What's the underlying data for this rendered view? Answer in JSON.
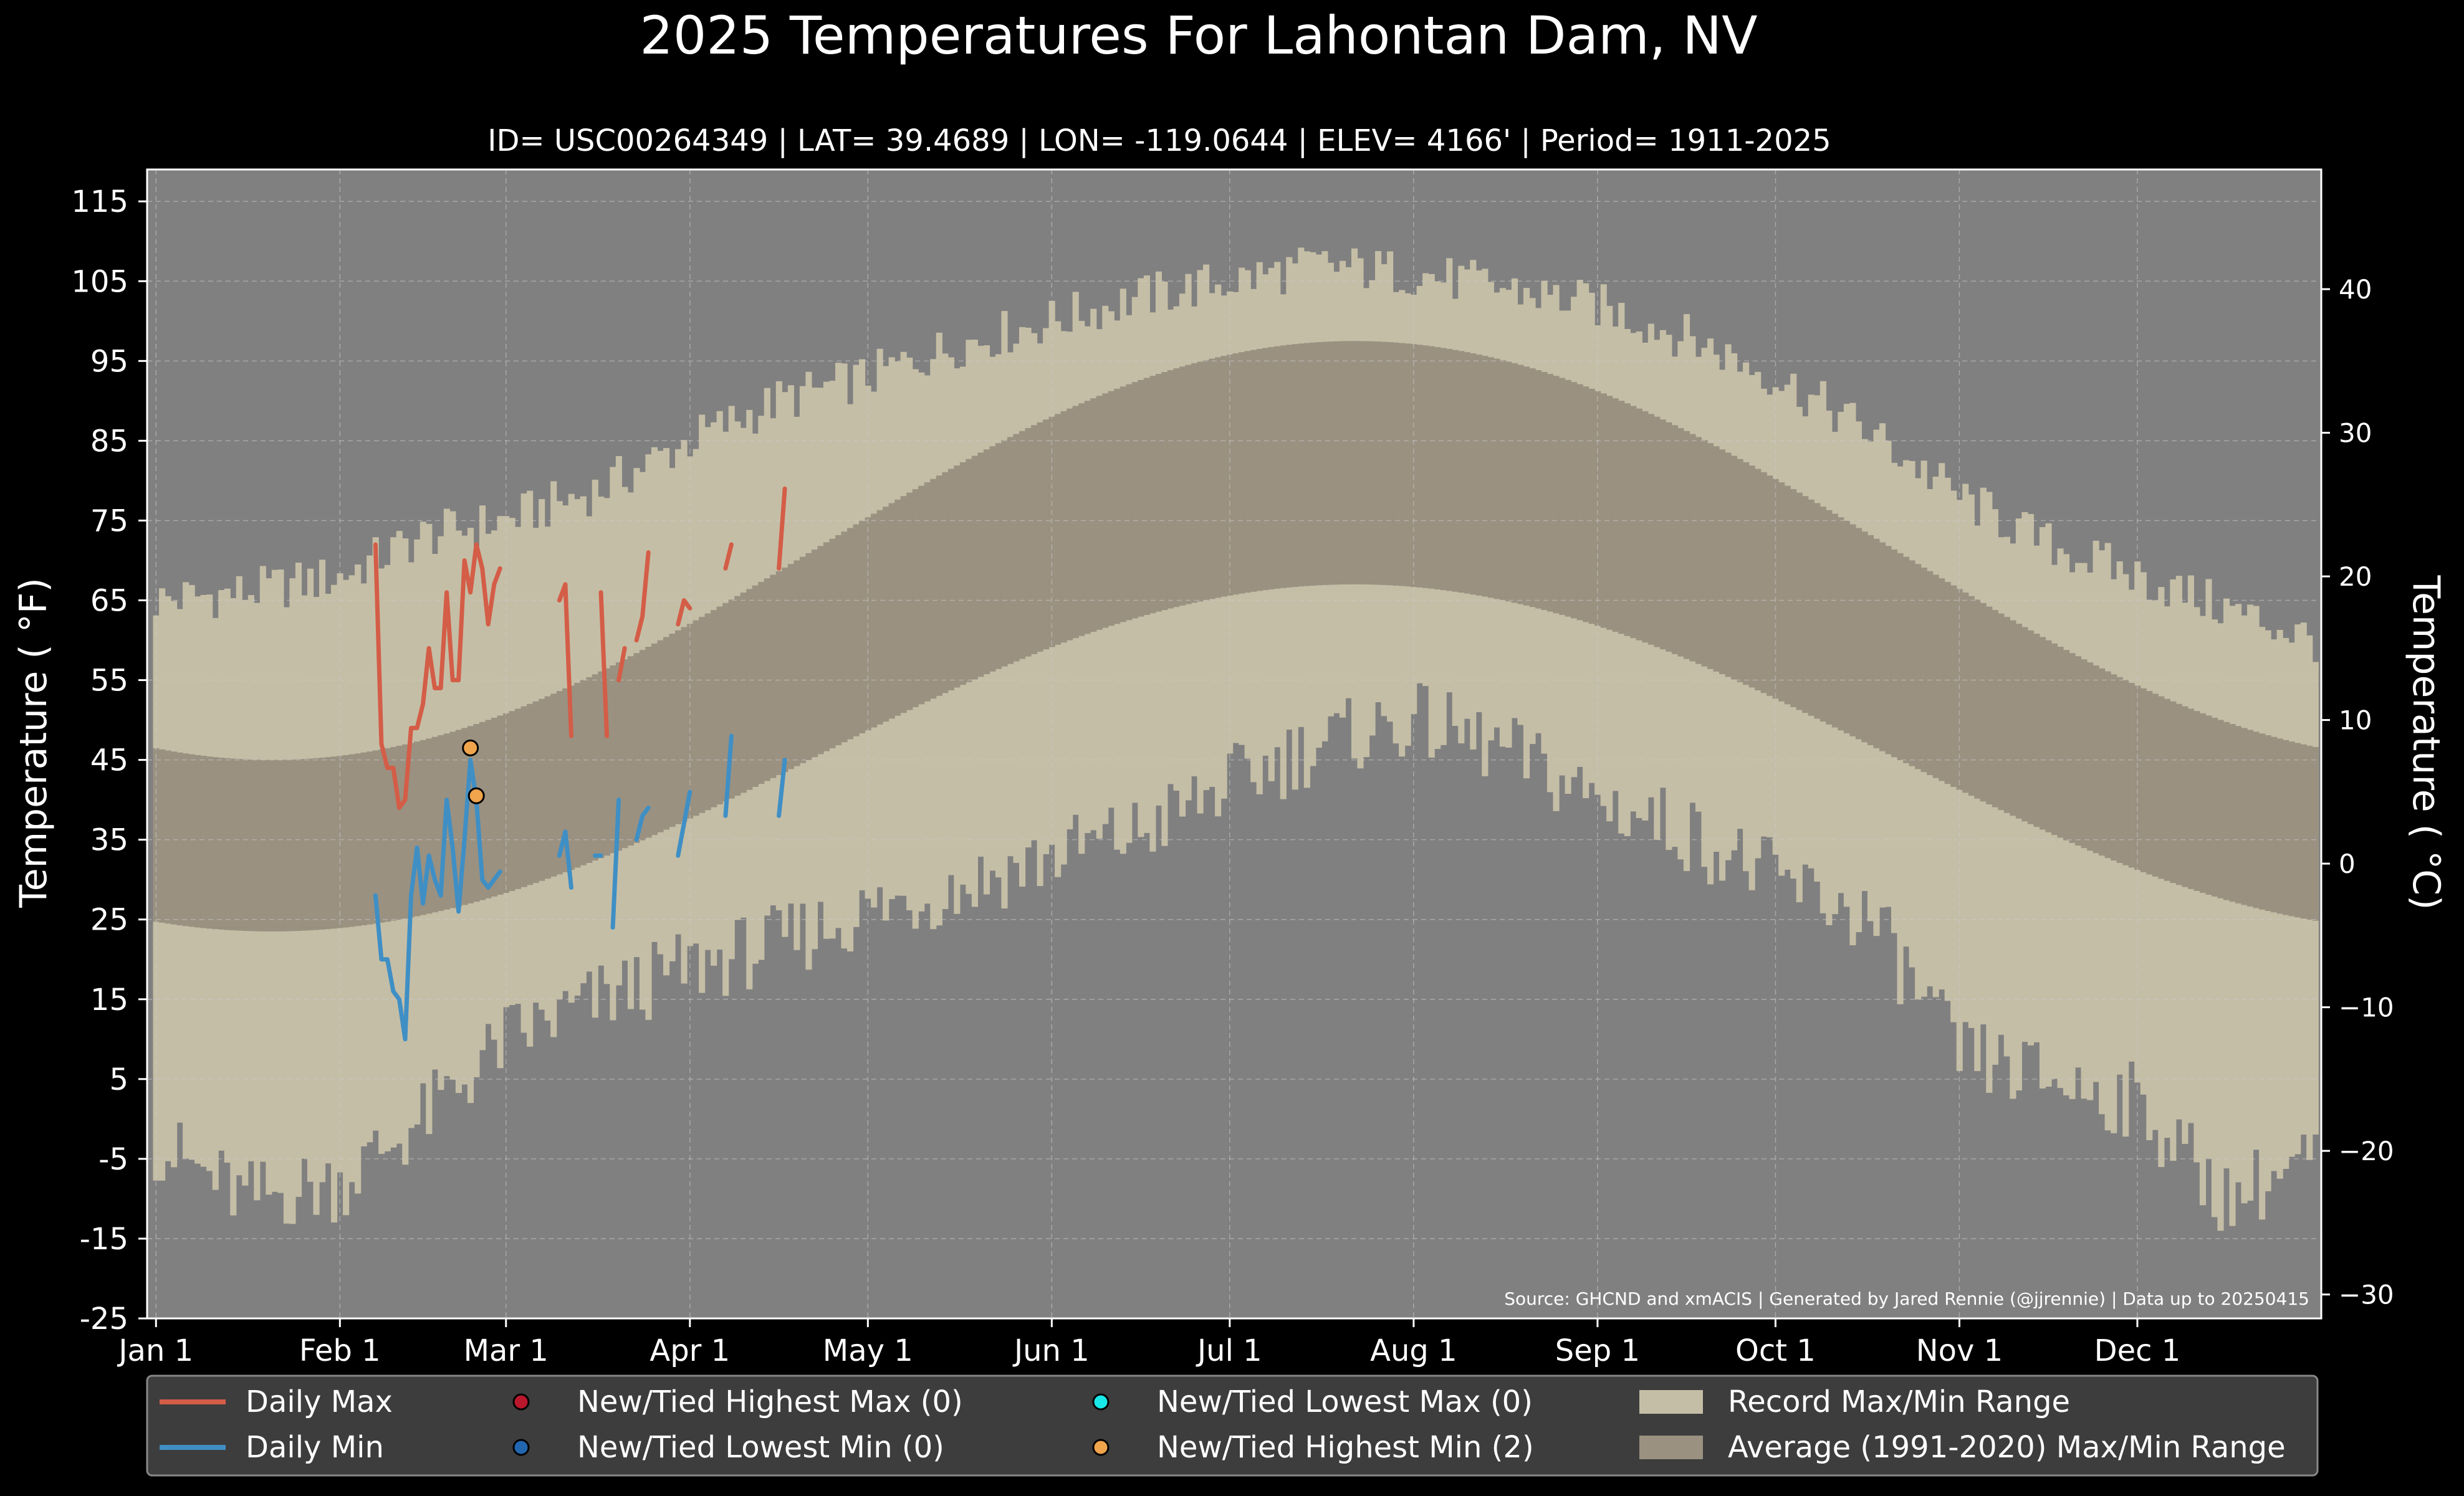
{
  "chart_data": {
    "type": "area",
    "title": "2025 Temperatures For Lahontan Dam, NV",
    "subtitle": "ID= USC00264349 | LAT= 39.4689 | LON= -119.0644 | ELEV= 4166' | Period= 1911-2025",
    "ylabel": "Temperature ( °F)",
    "ylabel_right": "Temperature ( °C)",
    "source": "Source: GHCND and xmACIS | Generated by Jared Rennie (@jjrennie) | Data up to 20250415",
    "ylim": [
      -25,
      119
    ],
    "xlim_day": [
      -1.5,
      365
    ],
    "y_ticks": [
      -25,
      -15,
      -5,
      5,
      15,
      25,
      35,
      45,
      55,
      65,
      75,
      85,
      95,
      105,
      115
    ],
    "y_ticks_right": [
      -30,
      -20,
      -10,
      0,
      10,
      20,
      30,
      40
    ],
    "x_ticks": [
      {
        "label": "Jan 1",
        "day": 0
      },
      {
        "label": "Feb 1",
        "day": 31
      },
      {
        "label": "Mar 1",
        "day": 59
      },
      {
        "label": "Apr 1",
        "day": 90
      },
      {
        "label": "May 1",
        "day": 120
      },
      {
        "label": "Jun 1",
        "day": 151
      },
      {
        "label": "Jul 1",
        "day": 181
      },
      {
        "label": "Aug 1",
        "day": 212
      },
      {
        "label": "Sep 1",
        "day": 243
      },
      {
        "label": "Oct 1",
        "day": 273
      },
      {
        "label": "Nov 1",
        "day": 304
      },
      {
        "label": "Dec 1",
        "day": 334
      }
    ],
    "grid": true,
    "legend_position": "bottom",
    "colors": {
      "plot_bg": "#808080",
      "record_range": "#c5bea6",
      "normal_range": "#9a9181",
      "daily_max": "#d45d47",
      "daily_min": "#3f8fc5",
      "new_highest_max": "#b8172c",
      "new_lowest_min": "#2266b0",
      "new_lowest_max": "#19e8e8",
      "new_highest_min": "#f0a44c",
      "legend_bg": "#3d3d3d"
    },
    "normal_range": {
      "max_low_point": {
        "day": 0,
        "value": 45
      },
      "max_peak": {
        "day": 202,
        "value": 97.5
      },
      "max_year_end": {
        "day": 364,
        "value": 45
      },
      "min_low_point": {
        "day": 0,
        "value": 23.5
      },
      "min_peak": {
        "day": 202,
        "value": 67
      },
      "min_year_end": {
        "day": 364,
        "value": 23.5
      }
    },
    "record_max_anchors": [
      {
        "day": 0,
        "value": 65
      },
      {
        "day": 15,
        "value": 66
      },
      {
        "day": 31,
        "value": 68
      },
      {
        "day": 45,
        "value": 73
      },
      {
        "day": 59,
        "value": 75
      },
      {
        "day": 75,
        "value": 79
      },
      {
        "day": 90,
        "value": 85
      },
      {
        "day": 105,
        "value": 90
      },
      {
        "day": 120,
        "value": 93
      },
      {
        "day": 135,
        "value": 97
      },
      {
        "day": 151,
        "value": 100
      },
      {
        "day": 166,
        "value": 103
      },
      {
        "day": 181,
        "value": 105
      },
      {
        "day": 196,
        "value": 107
      },
      {
        "day": 212,
        "value": 106
      },
      {
        "day": 228,
        "value": 104
      },
      {
        "day": 243,
        "value": 102
      },
      {
        "day": 258,
        "value": 98
      },
      {
        "day": 273,
        "value": 93
      },
      {
        "day": 289,
        "value": 86
      },
      {
        "day": 304,
        "value": 78
      },
      {
        "day": 319,
        "value": 72
      },
      {
        "day": 334,
        "value": 68
      },
      {
        "day": 349,
        "value": 64
      },
      {
        "day": 364,
        "value": 60
      }
    ],
    "record_min_anchors": [
      {
        "day": 0,
        "value": -3
      },
      {
        "day": 15,
        "value": -10
      },
      {
        "day": 31,
        "value": -8
      },
      {
        "day": 45,
        "value": 0
      },
      {
        "day": 59,
        "value": 10
      },
      {
        "day": 75,
        "value": 15
      },
      {
        "day": 90,
        "value": 19
      },
      {
        "day": 105,
        "value": 22
      },
      {
        "day": 120,
        "value": 26
      },
      {
        "day": 135,
        "value": 29
      },
      {
        "day": 151,
        "value": 33
      },
      {
        "day": 166,
        "value": 36
      },
      {
        "day": 181,
        "value": 42
      },
      {
        "day": 196,
        "value": 47
      },
      {
        "day": 212,
        "value": 50
      },
      {
        "day": 228,
        "value": 46
      },
      {
        "day": 243,
        "value": 40
      },
      {
        "day": 258,
        "value": 36
      },
      {
        "day": 273,
        "value": 30
      },
      {
        "day": 289,
        "value": 25
      },
      {
        "day": 304,
        "value": 8
      },
      {
        "day": 319,
        "value": 5
      },
      {
        "day": 334,
        "value": 2
      },
      {
        "day": 349,
        "value": -10
      },
      {
        "day": 364,
        "value": -5
      }
    ],
    "series": [
      {
        "name": "Daily Max",
        "segments": [
          [
            [
              37,
              72
            ],
            [
              38,
              47
            ],
            [
              39,
              44
            ],
            [
              40,
              44
            ],
            [
              41,
              39
            ],
            [
              42,
              40
            ],
            [
              43,
              49
            ],
            [
              44,
              49
            ],
            [
              45,
              52
            ],
            [
              46,
              59
            ],
            [
              47,
              54
            ],
            [
              48,
              54
            ],
            [
              49,
              66
            ],
            [
              50,
              55
            ],
            [
              51,
              55
            ],
            [
              52,
              70
            ],
            [
              53,
              66
            ],
            [
              54,
              72
            ],
            [
              55,
              69
            ],
            [
              56,
              62
            ],
            [
              57,
              67
            ],
            [
              58,
              69
            ]
          ],
          [
            [
              68,
              65
            ],
            [
              69,
              67
            ],
            [
              70,
              48
            ]
          ],
          [
            [
              75,
              66
            ],
            [
              76,
              48
            ]
          ],
          [
            [
              78,
              55
            ],
            [
              79,
              59
            ]
          ],
          [
            [
              81,
              60
            ],
            [
              82,
              63
            ],
            [
              83,
              71
            ]
          ],
          [
            [
              88,
              62
            ],
            [
              89,
              65
            ],
            [
              90,
              64
            ]
          ],
          [
            [
              96,
              69
            ],
            [
              97,
              72
            ]
          ],
          [
            [
              105,
              69
            ],
            [
              106,
              79
            ]
          ]
        ]
      },
      {
        "name": "Daily Min",
        "segments": [
          [
            [
              37,
              28
            ],
            [
              38,
              20
            ],
            [
              39,
              20
            ],
            [
              40,
              16
            ],
            [
              41,
              15
            ],
            [
              42,
              10
            ],
            [
              43,
              28
            ],
            [
              44,
              34
            ],
            [
              45,
              27
            ],
            [
              46,
              33
            ],
            [
              47,
              30
            ],
            [
              48,
              28
            ],
            [
              49,
              40
            ],
            [
              50,
              34
            ],
            [
              51,
              26
            ],
            [
              52,
              35
            ],
            [
              53,
              45
            ],
            [
              54,
              40
            ],
            [
              55,
              30
            ],
            [
              56,
              29
            ],
            [
              57,
              30
            ],
            [
              58,
              31
            ]
          ],
          [
            [
              68,
              33
            ],
            [
              69,
              36
            ],
            [
              70,
              29
            ]
          ],
          [
            [
              74,
              33
            ],
            [
              75,
              33
            ]
          ],
          [
            [
              77,
              24
            ],
            [
              78,
              40
            ]
          ],
          [
            [
              81,
              35
            ],
            [
              82,
              38
            ],
            [
              83,
              39
            ]
          ],
          [
            [
              88,
              33
            ],
            [
              89,
              37
            ],
            [
              90,
              41
            ]
          ],
          [
            [
              96,
              38
            ],
            [
              97,
              48
            ]
          ],
          [
            [
              105,
              38
            ],
            [
              106,
              45
            ]
          ]
        ]
      }
    ],
    "new_highest_min_points": [
      {
        "day": 53,
        "value": 46.5
      },
      {
        "day": 54,
        "value": 40.5
      }
    ]
  },
  "legend": {
    "daily_max": "Daily Max",
    "daily_min": "Daily Min",
    "new_highest_max": "New/Tied Highest Max (0)",
    "new_lowest_min": "New/Tied Lowest Min (0)",
    "new_lowest_max": "New/Tied Lowest Max (0)",
    "new_highest_min": "New/Tied Highest Min (2)",
    "record_range": "Record Max/Min Range",
    "normal_range": "Average (1991-2020) Max/Min Range"
  }
}
